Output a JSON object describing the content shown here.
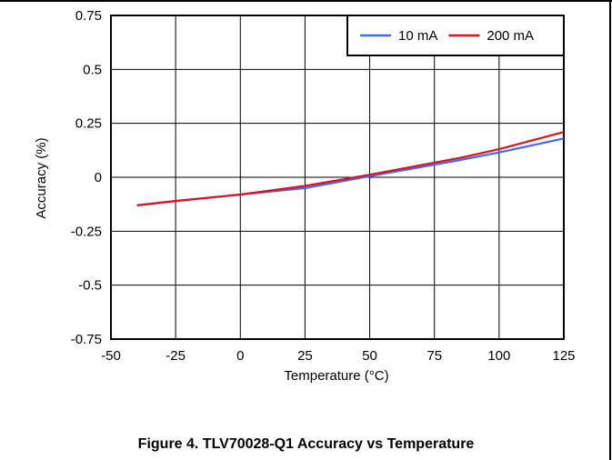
{
  "chart_data": {
    "type": "line",
    "xlabel": "Temperature (°C)",
    "ylabel": "Accuracy (%)",
    "xlim": [
      -50,
      125
    ],
    "ylim": [
      -0.75,
      0.75
    ],
    "xticks": [
      "-50",
      "-25",
      "0",
      "25",
      "50",
      "75",
      "100",
      "125"
    ],
    "yticks": [
      "0.75",
      "0.5",
      "0.25",
      "0",
      "-0.25",
      "-0.5",
      "-0.75"
    ],
    "grid": true,
    "legend_position": "top-right",
    "series": [
      {
        "name": "10 mA",
        "color": "#3d6bf0",
        "x": [
          -40,
          -25,
          0,
          25,
          50,
          85,
          100,
          125
        ],
        "y": [
          -0.13,
          -0.11,
          -0.08,
          -0.05,
          0.005,
          0.08,
          0.115,
          0.18
        ]
      },
      {
        "name": "200 mA",
        "color": "#e0101e",
        "x": [
          -40,
          -25,
          0,
          25,
          50,
          85,
          100,
          125
        ],
        "y": [
          -0.13,
          -0.11,
          -0.08,
          -0.04,
          0.012,
          0.09,
          0.13,
          0.21
        ]
      }
    ]
  },
  "caption": "Figure 4. TLV70028-Q1 Accuracy vs Temperature"
}
